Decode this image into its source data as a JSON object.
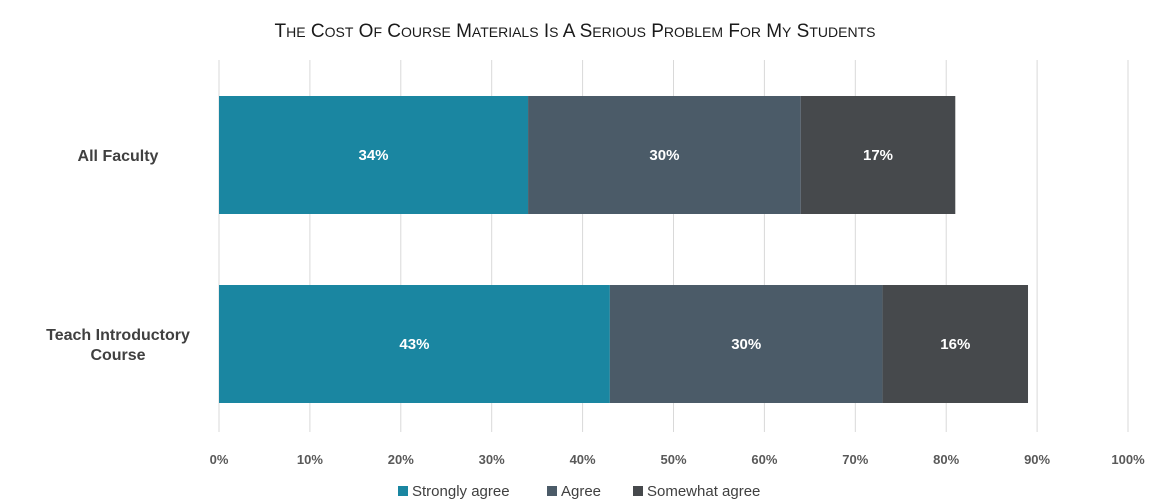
{
  "chart_data": {
    "type": "bar",
    "orientation": "horizontal",
    "stacked": true,
    "title": "The Cost of Course Materials is a Serious Problem for my Students",
    "categories": [
      "All Faculty",
      "Teach Introductory Course"
    ],
    "series": [
      {
        "name": "Strongly agree",
        "color": "#1a86a1",
        "values": [
          34,
          43
        ],
        "labels": [
          "34%",
          "43%"
        ]
      },
      {
        "name": "Agree",
        "color": "#4b5b68",
        "values": [
          30,
          30
        ],
        "labels": [
          "30%",
          "30%"
        ]
      },
      {
        "name": "Somewhat agree",
        "color": "#46494c",
        "values": [
          17,
          16
        ],
        "labels": [
          "17%",
          "16%"
        ]
      }
    ],
    "xlim": [
      0,
      100
    ],
    "x_ticks": [
      "0%",
      "10%",
      "20%",
      "30%",
      "40%",
      "50%",
      "60%",
      "70%",
      "80%",
      "90%",
      "100%"
    ],
    "xlabel": "",
    "ylabel": "",
    "grid": true,
    "legend_position": "bottom"
  }
}
